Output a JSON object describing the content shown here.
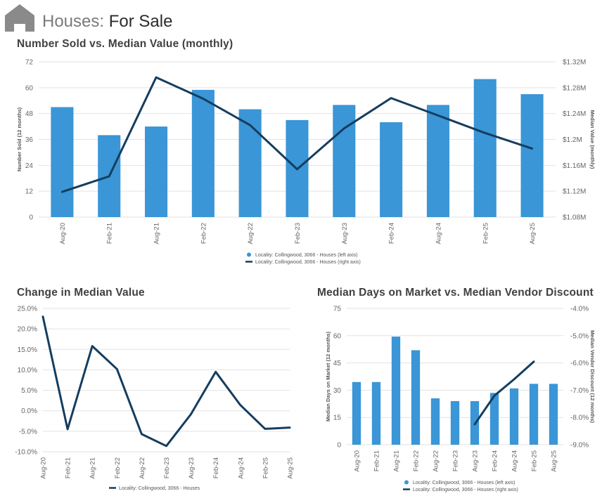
{
  "header": {
    "title": "Houses:",
    "subtitle": "For Sale",
    "icon": "house-icon"
  },
  "colors": {
    "bar": "#3a96d6",
    "line": "#153d5e",
    "grid": "#e2e2e2",
    "axis_text": "#666666",
    "title_text": "#404040"
  },
  "chart_data": [
    {
      "id": "sold-vs-value",
      "type": "bar",
      "title": "Number Sold vs. Median Value (monthly)",
      "categories": [
        "Aug-20",
        "Feb-21",
        "Aug-21",
        "Feb-22",
        "Aug-22",
        "Feb-23",
        "Aug-23",
        "Feb-24",
        "Aug-24",
        "Feb-25",
        "Aug-25"
      ],
      "ylabel": "Number Sold (12 months)",
      "y2label": "Median Value (monthly)",
      "ylim": [
        0,
        72
      ],
      "y2lim": [
        1.08,
        1.32
      ],
      "yticks": [
        "0",
        "12",
        "24",
        "36",
        "48",
        "60",
        "72"
      ],
      "y2ticks": [
        "$1.08M",
        "$1.12M",
        "$1.16M",
        "$1.2M",
        "$1.24M",
        "$1.28M",
        "$1.32M"
      ],
      "grid": true,
      "legend_position": "bottom-center",
      "series": [
        {
          "name": "Locality: Collingwood, 3066 - Houses (left axis)",
          "type": "bar",
          "axis": "left",
          "values": [
            51,
            38,
            42,
            59,
            50,
            45,
            52,
            44,
            52,
            64,
            57
          ]
        },
        {
          "name": "Locality: Collingwood, 3066 - Houses (right axis)",
          "type": "line",
          "axis": "right",
          "values": [
            1.119,
            1.143,
            1.296,
            1.263,
            1.222,
            1.154,
            1.217,
            1.264,
            1.237,
            1.21,
            1.186
          ]
        }
      ]
    },
    {
      "id": "change-median",
      "type": "line",
      "title": "Change in Median Value",
      "categories": [
        "Aug-20",
        "Feb-21",
        "Aug-21",
        "Feb-22",
        "Aug-22",
        "Feb-23",
        "Aug-23",
        "Feb-24",
        "Aug-24",
        "Feb-25",
        "Aug-25"
      ],
      "ylim": [
        -10,
        25
      ],
      "yticks": [
        "-10.0%",
        "-5.0%",
        "0.0%",
        "5.0%",
        "10.0%",
        "15.0%",
        "20.0%",
        "25.0%"
      ],
      "grid": true,
      "legend_position": "bottom-center",
      "series": [
        {
          "name": "Locality: Collingwood, 3066 - Houses",
          "type": "line",
          "values": [
            23.0,
            -4.5,
            15.8,
            10.2,
            -5.7,
            -8.6,
            -0.8,
            9.5,
            1.4,
            -4.4,
            -4.1
          ]
        }
      ]
    },
    {
      "id": "days-vs-discount",
      "type": "bar",
      "title": "Median Days on Market vs. Median Vendor Discount",
      "categories": [
        "Aug-20",
        "Feb-21",
        "Aug-21",
        "Feb-22",
        "Aug-22",
        "Feb-23",
        "Aug-23",
        "Feb-24",
        "Aug-24",
        "Feb-25",
        "Aug-25"
      ],
      "ylabel": "Median Days on Market (12 months)",
      "y2label": "Median Vendor Discount (12 months)",
      "ylim": [
        0,
        75
      ],
      "y2lim": [
        -9.0,
        -4.0
      ],
      "yticks": [
        "0",
        "15",
        "30",
        "45",
        "60",
        "75"
      ],
      "y2ticks": [
        "-9.0%",
        "-8.0%",
        "-7.0%",
        "-6.0%",
        "-5.0%",
        "-4.0%"
      ],
      "grid": true,
      "legend_position": "bottom-center",
      "series": [
        {
          "name": "Locality: Collingwood, 3066 - Houses (left axis)",
          "type": "bar",
          "axis": "left",
          "values": [
            34.5,
            34.5,
            59.5,
            52,
            25.5,
            24,
            24,
            28.5,
            31,
            33.5,
            33.5
          ]
        },
        {
          "name": "Locality: Collingwood, 3066 - Houses (right axis)",
          "type": "line",
          "axis": "right",
          "values": [
            null,
            null,
            null,
            null,
            null,
            null,
            -8.25,
            -7.2,
            -6.6,
            -5.95,
            null
          ]
        }
      ]
    }
  ]
}
